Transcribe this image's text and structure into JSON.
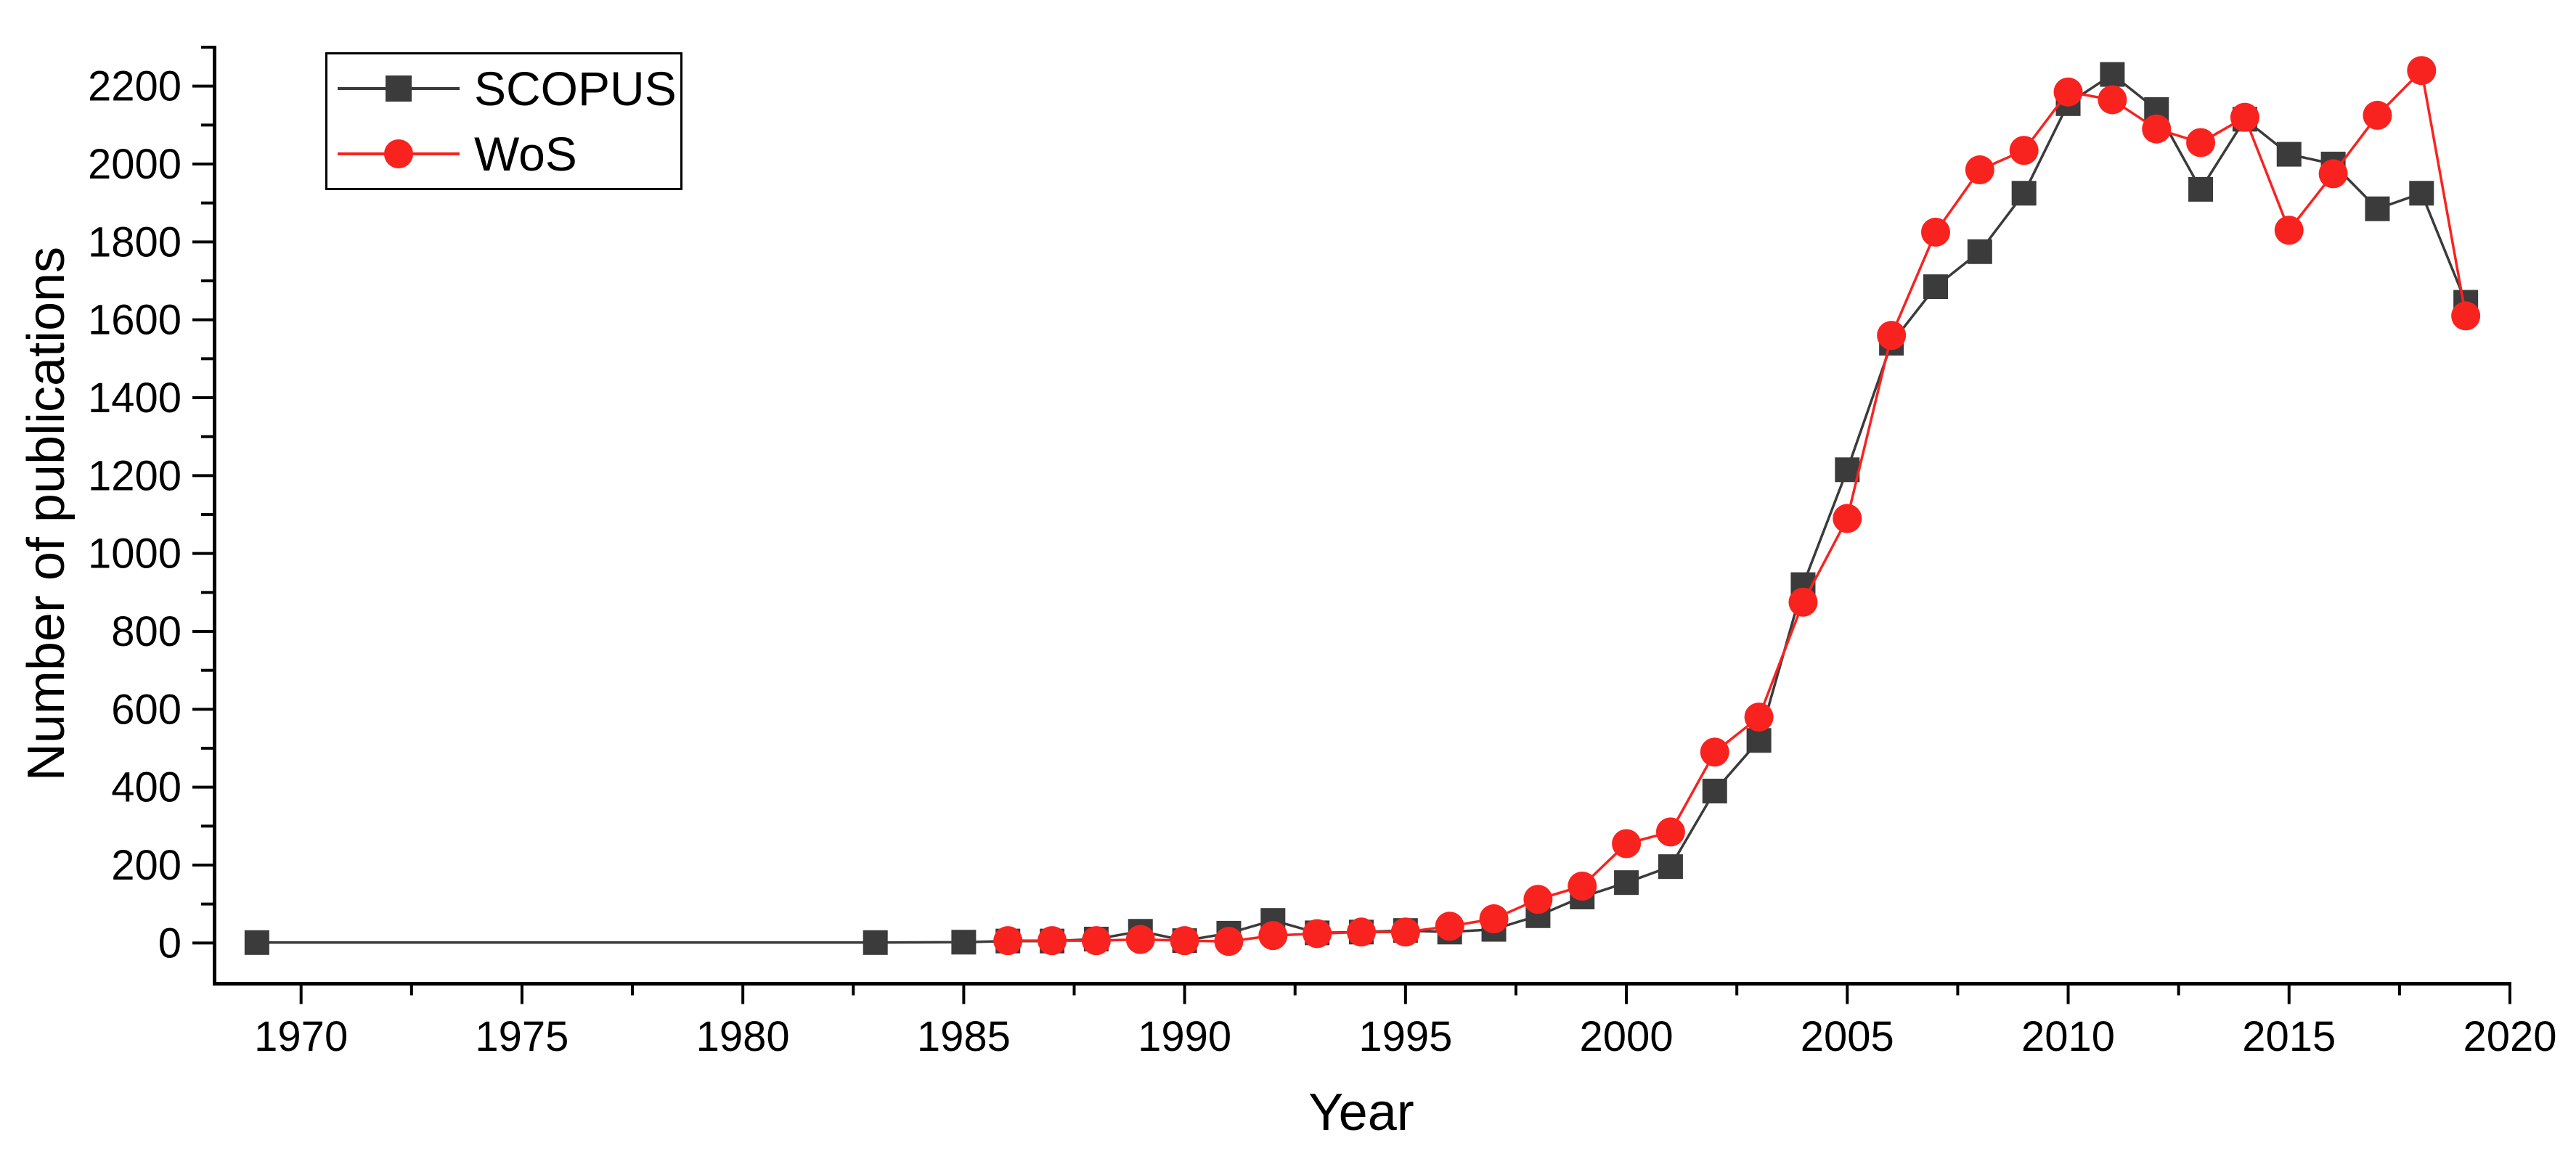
{
  "figure": {
    "background": "#ffffff",
    "axis_color": "#000000",
    "tick_label_color": "#000000"
  },
  "chart_data": {
    "type": "line",
    "title": "",
    "xlabel": "Year",
    "ylabel": "Number of publications",
    "xlim": [
      1968,
      2020
    ],
    "ylim": [
      -100,
      2300
    ],
    "x_major_ticks": [
      1970,
      1975,
      1980,
      1985,
      1990,
      1995,
      2000,
      2005,
      2010,
      2015,
      2020
    ],
    "x_minor_ticks": [
      1972.5,
      1977.5,
      1982.5,
      1987.5,
      1992.5,
      1997.5,
      2002.5,
      2007.5,
      2012.5,
      2017.5
    ],
    "y_major_ticks": [
      0,
      200,
      400,
      600,
      800,
      1000,
      1200,
      1400,
      1600,
      1800,
      2000,
      2200
    ],
    "y_minor_ticks": [
      100,
      300,
      500,
      700,
      900,
      1100,
      1300,
      1500,
      1700,
      1900,
      2100,
      2300
    ],
    "grid": false,
    "legend_position": "top-left",
    "series": [
      {
        "name": "SCOPUS",
        "color": "#3b3b3b",
        "marker": "square",
        "points": [
          [
            1969,
            1
          ],
          [
            1983,
            1
          ],
          [
            1985,
            2
          ],
          [
            1986,
            5
          ],
          [
            1987,
            5
          ],
          [
            1988,
            10
          ],
          [
            1989,
            30
          ],
          [
            1990,
            6
          ],
          [
            1991,
            25
          ],
          [
            1992,
            58
          ],
          [
            1993,
            26
          ],
          [
            1994,
            28
          ],
          [
            1995,
            32
          ],
          [
            1996,
            28
          ],
          [
            1997,
            35
          ],
          [
            1998,
            70
          ],
          [
            1999,
            118
          ],
          [
            2000,
            155
          ],
          [
            2001,
            196
          ],
          [
            2002,
            390
          ],
          [
            2003,
            520
          ],
          [
            2004,
            920
          ],
          [
            2005,
            1215
          ],
          [
            2006,
            1540
          ],
          [
            2007,
            1685
          ],
          [
            2008,
            1775
          ],
          [
            2009,
            1925
          ],
          [
            2010,
            2155
          ],
          [
            2011,
            2230
          ],
          [
            2012,
            2140
          ],
          [
            2013,
            1935
          ],
          [
            2014,
            2115
          ],
          [
            2015,
            2025
          ],
          [
            2016,
            2000
          ],
          [
            2017,
            1885
          ],
          [
            2018,
            1925
          ],
          [
            2019,
            1645
          ]
        ]
      },
      {
        "name": "WoS",
        "color": "#f8231f",
        "marker": "circle",
        "points": [
          [
            1986,
            6
          ],
          [
            1987,
            6
          ],
          [
            1988,
            6
          ],
          [
            1989,
            9
          ],
          [
            1990,
            6
          ],
          [
            1991,
            4
          ],
          [
            1992,
            19
          ],
          [
            1993,
            24
          ],
          [
            1994,
            28
          ],
          [
            1995,
            28
          ],
          [
            1996,
            43
          ],
          [
            1997,
            62
          ],
          [
            1998,
            112
          ],
          [
            1999,
            146
          ],
          [
            2000,
            255
          ],
          [
            2001,
            285
          ],
          [
            2002,
            490
          ],
          [
            2003,
            580
          ],
          [
            2004,
            875
          ],
          [
            2005,
            1090
          ],
          [
            2006,
            1560
          ],
          [
            2007,
            1825
          ],
          [
            2008,
            1985
          ],
          [
            2009,
            2035
          ],
          [
            2010,
            2185
          ],
          [
            2011,
            2165
          ],
          [
            2012,
            2090
          ],
          [
            2013,
            2055
          ],
          [
            2014,
            2120
          ],
          [
            2015,
            1830
          ],
          [
            2016,
            1975
          ],
          [
            2017,
            2125
          ],
          [
            2018,
            2240
          ],
          [
            2019,
            1610
          ]
        ]
      }
    ]
  }
}
